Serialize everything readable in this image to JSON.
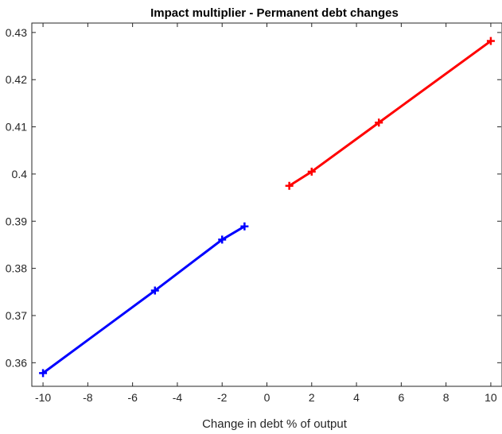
{
  "chart_data": {
    "type": "line",
    "title": "Impact multiplier - Permanent debt changes",
    "xlabel": "Change in debt % of output",
    "ylabel": "",
    "xlim": [
      -10.5,
      10.5
    ],
    "ylim": [
      0.355,
      0.432
    ],
    "xticks": [
      -10,
      -8,
      -6,
      -4,
      -2,
      0,
      2,
      4,
      6,
      8,
      10
    ],
    "yticks": [
      0.36,
      0.37,
      0.38,
      0.39,
      0.4,
      0.41,
      0.42,
      0.43
    ],
    "ytick_labels": [
      "0.36",
      "0.37",
      "0.38",
      "0.39",
      "0.4",
      "0.41",
      "0.42",
      "0.43"
    ],
    "grid": false,
    "series": [
      {
        "color": "#0000ff",
        "marker": "plus",
        "x": [
          -10,
          -5,
          -2,
          -1
        ],
        "y": [
          0.3578,
          0.3753,
          0.3861,
          0.3889
        ]
      },
      {
        "color": "#ff0000",
        "marker": "plus",
        "x": [
          1,
          2,
          5,
          10
        ],
        "y": [
          0.3975,
          0.4005,
          0.4109,
          0.4282
        ]
      }
    ]
  }
}
